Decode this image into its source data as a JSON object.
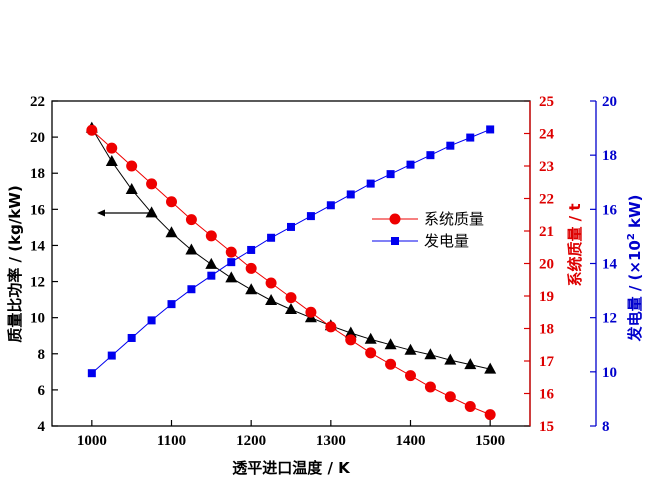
{
  "chart_data": {
    "type": "line",
    "title": "",
    "xlabel": "透平进口温度 / K",
    "xlim": [
      950,
      1550
    ],
    "xticks": [
      1000,
      1100,
      1200,
      1300,
      1400,
      1500
    ],
    "x": [
      1000,
      1025,
      1050,
      1075,
      1100,
      1125,
      1150,
      1175,
      1200,
      1225,
      1250,
      1275,
      1300,
      1325,
      1350,
      1375,
      1400,
      1425,
      1450,
      1475,
      1500
    ],
    "axes": {
      "left": {
        "label": "质量比功率 / (kg/kW)",
        "ylim": [
          4,
          22
        ],
        "ticks": [
          4,
          6,
          8,
          10,
          12,
          14,
          16,
          18,
          20,
          22
        ],
        "color": "#000000"
      },
      "right1": {
        "label": "系统质量 / t",
        "ylim": [
          15,
          25
        ],
        "ticks": [
          15,
          16,
          17,
          18,
          19,
          20,
          21,
          22,
          23,
          24,
          25
        ],
        "color": "#dd0000"
      },
      "right2": {
        "label_prefix": "发电量 / (×10",
        "label_sup": "2",
        "label_suffix": " kW)",
        "ylim": [
          8,
          20
        ],
        "ticks": [
          8,
          10,
          12,
          14,
          16,
          18,
          20
        ],
        "color": "#0000cc"
      }
    },
    "series": [
      {
        "axis": "left",
        "marker": "triangle",
        "color": "#000000",
        "values": [
          20.5,
          18.65,
          17.1,
          15.8,
          14.7,
          13.75,
          12.95,
          12.2,
          11.55,
          10.95,
          10.45,
          10.0,
          9.55,
          9.15,
          8.8,
          8.5,
          8.2,
          7.95,
          7.65,
          7.4,
          7.15
        ]
      },
      {
        "axis": "right1",
        "name": "系统质量",
        "marker": "circle",
        "color": "#ee0000",
        "values": [
          24.1,
          23.55,
          23.0,
          22.45,
          21.9,
          21.35,
          20.85,
          20.35,
          19.85,
          19.4,
          18.95,
          18.5,
          18.05,
          17.65,
          17.25,
          16.9,
          16.55,
          16.2,
          15.9,
          15.6,
          15.35
        ]
      },
      {
        "axis": "right2",
        "name": "发电量",
        "marker": "square",
        "color": "#0000ee",
        "values": [
          9.95,
          10.6,
          11.25,
          11.9,
          12.5,
          13.05,
          13.55,
          14.05,
          14.5,
          14.95,
          15.35,
          15.75,
          16.15,
          16.55,
          16.95,
          17.3,
          17.65,
          18.0,
          18.35,
          18.65,
          18.95
        ]
      }
    ],
    "legend": {
      "position": "center-right"
    }
  }
}
